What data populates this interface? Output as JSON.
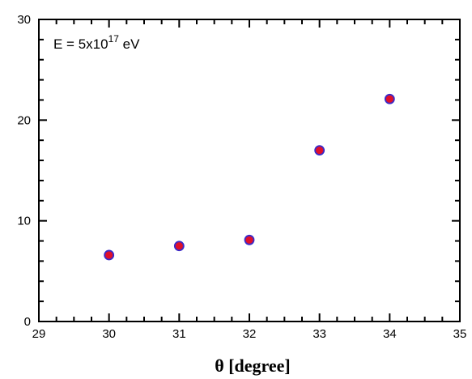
{
  "chart_data": {
    "type": "scatter",
    "title": "",
    "xlabel": "θ [degree]",
    "ylabel": "",
    "xlim": [
      29,
      35
    ],
    "ylim": [
      0,
      30
    ],
    "x_ticks": [
      29,
      30,
      31,
      32,
      33,
      34,
      35
    ],
    "y_ticks": [
      0,
      10,
      20,
      30
    ],
    "x_tick_labels": [
      "29",
      "30",
      "31",
      "32",
      "33",
      "34",
      "35"
    ],
    "y_tick_labels": [
      "0",
      "10",
      "20",
      "30"
    ],
    "annotation": {
      "base": "E = 5x10",
      "sup": "17",
      "unit": " eV"
    },
    "grid": false,
    "legend": "none",
    "marker": {
      "fill": "#e0102a",
      "stroke": "#3a2ac8"
    },
    "series": [
      {
        "x": [
          30,
          31,
          32,
          33,
          34
        ],
        "y": [
          6.6,
          7.5,
          8.1,
          17.0,
          22.1
        ]
      }
    ]
  }
}
